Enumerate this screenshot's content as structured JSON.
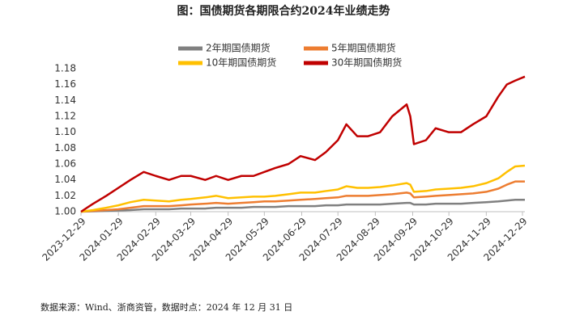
{
  "chart_data": {
    "type": "line",
    "title": "图：国债期货各期限合约2024年业绩走势",
    "source": "数据来源：Wind、浙商资管，数据时点：2024 年 12 月 31 日",
    "x": [
      "2023-12-29",
      "2024-01-08",
      "2024-01-19",
      "2024-01-29",
      "2024-02-08",
      "2024-02-19",
      "2024-02-29",
      "2024-03-11",
      "2024-03-21",
      "2024-03-29",
      "2024-04-10",
      "2024-04-19",
      "2024-04-29",
      "2024-05-10",
      "2024-05-20",
      "2024-05-29",
      "2024-06-07",
      "2024-06-18",
      "2024-06-28",
      "2024-07-10",
      "2024-07-19",
      "2024-07-29",
      "2024-08-05",
      "2024-08-14",
      "2024-08-23",
      "2024-09-02",
      "2024-09-12",
      "2024-09-24",
      "2024-09-27",
      "2024-09-30",
      "2024-10-10",
      "2024-10-18",
      "2024-10-29",
      "2024-11-08",
      "2024-11-18",
      "2024-11-29",
      "2024-12-09",
      "2024-12-16",
      "2024-12-23",
      "2024-12-31"
    ],
    "series": [
      {
        "name": "2年期国债期货",
        "color": "#808080",
        "values": [
          1.0,
          1.0005,
          1.001,
          1.0015,
          1.002,
          1.003,
          1.003,
          1.003,
          1.004,
          1.004,
          1.004,
          1.005,
          1.005,
          1.005,
          1.006,
          1.006,
          1.006,
          1.007,
          1.007,
          1.007,
          1.008,
          1.008,
          1.009,
          1.009,
          1.009,
          1.009,
          1.01,
          1.011,
          1.011,
          1.009,
          1.009,
          1.01,
          1.01,
          1.01,
          1.011,
          1.012,
          1.013,
          1.014,
          1.015,
          1.015
        ]
      },
      {
        "name": "5年期国债期货",
        "color": "#ed7d31",
        "values": [
          1.0,
          1.001,
          1.002,
          1.003,
          1.005,
          1.007,
          1.007,
          1.007,
          1.008,
          1.009,
          1.01,
          1.011,
          1.01,
          1.011,
          1.012,
          1.013,
          1.013,
          1.014,
          1.015,
          1.016,
          1.017,
          1.018,
          1.02,
          1.02,
          1.02,
          1.021,
          1.022,
          1.024,
          1.023,
          1.018,
          1.019,
          1.02,
          1.021,
          1.022,
          1.023,
          1.025,
          1.029,
          1.034,
          1.038,
          1.038
        ]
      },
      {
        "name": "10年期国债期货",
        "color": "#ffc000",
        "values": [
          1.0,
          1.002,
          1.005,
          1.008,
          1.012,
          1.015,
          1.014,
          1.013,
          1.015,
          1.016,
          1.018,
          1.02,
          1.017,
          1.018,
          1.019,
          1.019,
          1.02,
          1.022,
          1.024,
          1.024,
          1.026,
          1.028,
          1.032,
          1.03,
          1.03,
          1.031,
          1.033,
          1.036,
          1.034,
          1.025,
          1.026,
          1.028,
          1.029,
          1.03,
          1.032,
          1.036,
          1.042,
          1.05,
          1.057,
          1.058
        ]
      },
      {
        "name": "30年期国债期货",
        "color": "#c00000",
        "values": [
          1.0,
          1.01,
          1.02,
          1.03,
          1.04,
          1.05,
          1.045,
          1.04,
          1.045,
          1.045,
          1.04,
          1.045,
          1.04,
          1.045,
          1.045,
          1.05,
          1.055,
          1.06,
          1.07,
          1.065,
          1.075,
          1.09,
          1.11,
          1.095,
          1.095,
          1.1,
          1.12,
          1.135,
          1.12,
          1.085,
          1.09,
          1.105,
          1.1,
          1.1,
          1.11,
          1.12,
          1.145,
          1.16,
          1.165,
          1.17
        ]
      }
    ],
    "xlim": [
      "2023-12-29",
      "2024-12-31"
    ],
    "xticks": [
      "2023-12-29",
      "2024-01-29",
      "2024-02-29",
      "2024-03-29",
      "2024-04-29",
      "2024-05-29",
      "2024-06-29",
      "2024-07-29",
      "2024-08-29",
      "2024-09-29",
      "2024-10-29",
      "2024-11-29",
      "2024-12-29"
    ],
    "ylim": [
      1.0,
      1.18
    ],
    "yticks": [
      {
        "value": 1.0,
        "label": "1.00"
      },
      {
        "value": 1.02,
        "label": "1.02"
      },
      {
        "value": 1.04,
        "label": "1.04"
      },
      {
        "value": 1.06,
        "label": "1.06"
      },
      {
        "value": 1.08,
        "label": "1.08"
      },
      {
        "value": 1.1,
        "label": "1.10"
      },
      {
        "value": 1.12,
        "label": "1.12"
      },
      {
        "value": 1.14,
        "label": "1.14"
      },
      {
        "value": 1.16,
        "label": "1.16"
      },
      {
        "value": 1.18,
        "label": "1.18"
      }
    ],
    "grid": false
  }
}
